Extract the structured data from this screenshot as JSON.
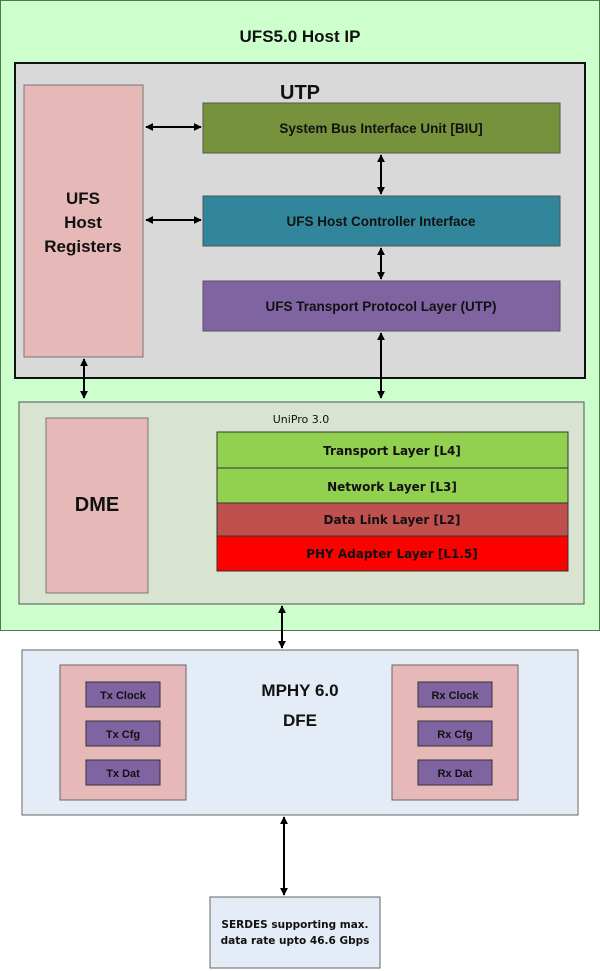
{
  "host_ip": {
    "title": "UFS5.0 Host IP",
    "color": "#ccffcc"
  },
  "utp": {
    "title": "UTP",
    "registers": [
      "UFS",
      "Host",
      "Registers"
    ],
    "biu": {
      "label": "System Bus Interface Unit [BIU]",
      "color": "#76923c"
    },
    "hci": {
      "label": "UFS Host Controller Interface",
      "color": "#31869b"
    },
    "utp_layer": {
      "label": "UFS Transport Protocol Layer (UTP)",
      "color": "#8064a2"
    }
  },
  "unipro": {
    "title": "UniPro 3.0",
    "dme": "DME",
    "layers": [
      {
        "label": "Transport Layer [L4]",
        "color": "#92d050"
      },
      {
        "label": "Network Layer [L3]",
        "color": "#92d050"
      },
      {
        "label": "Data Link Layer [L2]",
        "color": "#c0504d"
      },
      {
        "label": "PHY Adapter Layer [L1.5]",
        "color": "#ff0000"
      }
    ]
  },
  "mphy": {
    "title": "MPHY 6.0",
    "subtitle": "DFE",
    "tx": [
      "Tx Clock",
      "Tx Cfg",
      "Tx Dat"
    ],
    "rx": [
      "Rx Clock",
      "Rx Cfg",
      "Rx Dat"
    ]
  },
  "serdes": [
    "SERDES supporting max.",
    "data rate upto 46.6 Gbps"
  ]
}
